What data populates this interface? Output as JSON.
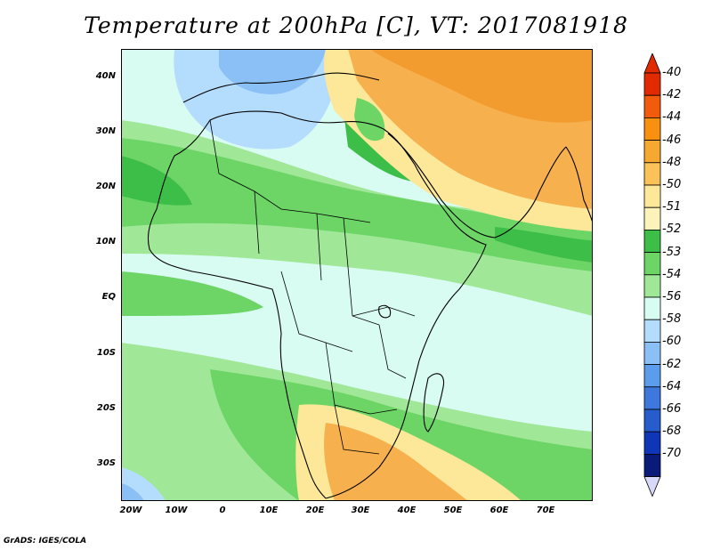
{
  "title": "Temperature at 200hPa [C], VT: 2017081918",
  "footer": "GrADS: IGES/COLA",
  "y_ticks": [
    "40N",
    "30N",
    "20N",
    "10N",
    "EQ",
    "10S",
    "20S",
    "30S"
  ],
  "x_ticks": [
    "20W",
    "10W",
    "0",
    "10E",
    "20E",
    "30E",
    "40E",
    "50E",
    "60E",
    "70E"
  ],
  "colorbar": {
    "labels": [
      "-40",
      "-42",
      "-44",
      "-46",
      "-48",
      "-50",
      "-51",
      "-52",
      "-53",
      "-54",
      "-56",
      "-58",
      "-60",
      "-62",
      "-64",
      "-66",
      "-68",
      "-70"
    ],
    "colors": [
      "#e12a00",
      "#f25a0c",
      "#f99010",
      "#f7a830",
      "#fbc25a",
      "#fce898",
      "#fcf3bb",
      "#3cbe48",
      "#6cd566",
      "#a0e898",
      "#d8fcf2",
      "#b4dcfc",
      "#8ac0f6",
      "#5c9cec",
      "#3e78dc",
      "#265ccc",
      "#1036b8",
      "#0a1a78"
    ]
  },
  "map": {
    "lon_range": [
      -22,
      80
    ],
    "lat_range": [
      -36,
      45
    ],
    "scale": "temperature_C",
    "colors": {
      "orange": "#f6b04e",
      "deep_orange": "#f29b2e",
      "yellow": "#fce898",
      "green_dark": "#3cbe48",
      "green": "#6cd566",
      "green_light": "#a0e898",
      "cyan": "#d8fcf2",
      "blue_light": "#b4dcfc",
      "blue": "#8ac0f6"
    }
  }
}
